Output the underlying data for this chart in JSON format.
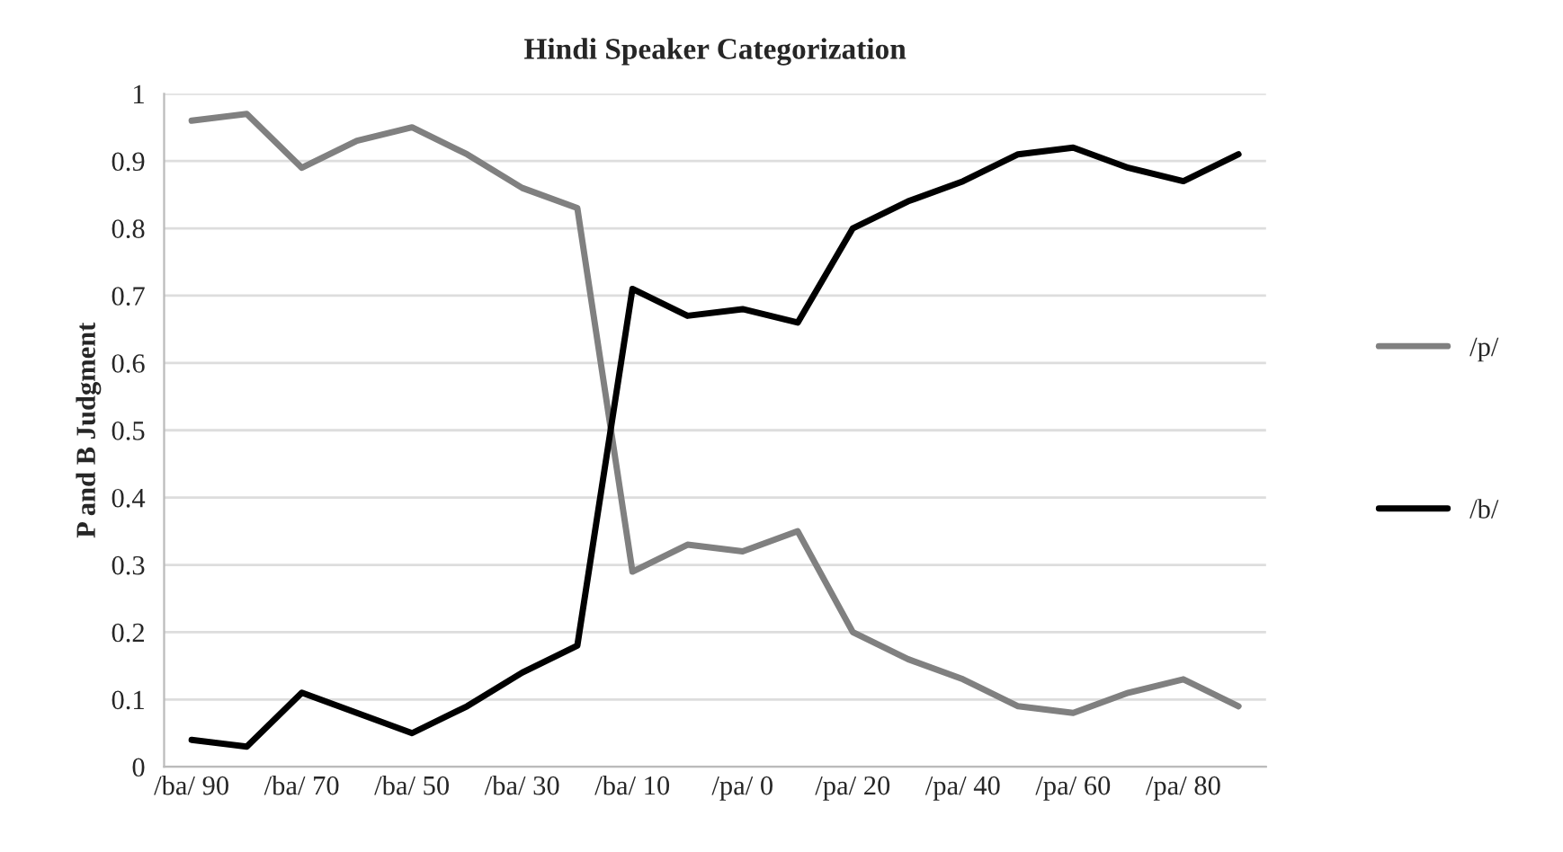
{
  "chart_data": {
    "type": "line",
    "title": "Hindi Speaker Categorization",
    "ylabel": "P and B Judgment",
    "categories": [
      "/ba/ 90",
      null,
      "/ba/ 70",
      null,
      "/ba/ 50",
      null,
      "/ba/ 30",
      null,
      "/ba/ 10",
      null,
      "/pa/ 0",
      null,
      "/pa/ 20",
      null,
      "/pa/ 40",
      null,
      "/pa/ 60",
      null,
      "/pa/ 80",
      null
    ],
    "series": [
      {
        "name": "/p/",
        "color": "#808080",
        "values": [
          0.96,
          0.97,
          0.89,
          0.93,
          0.95,
          0.91,
          0.86,
          0.83,
          0.29,
          0.33,
          0.32,
          0.35,
          0.2,
          0.16,
          0.13,
          0.09,
          0.08,
          0.11,
          0.13,
          0.09
        ]
      },
      {
        "name": "/b/",
        "color": "#000000",
        "values": [
          0.04,
          0.03,
          0.11,
          0.08,
          0.05,
          0.09,
          0.14,
          0.18,
          0.71,
          0.67,
          0.68,
          0.66,
          0.8,
          0.84,
          0.87,
          0.91,
          0.92,
          0.89,
          0.87,
          0.91
        ]
      }
    ],
    "ylim": [
      0,
      1
    ],
    "yticks": [
      0,
      0.1,
      0.2,
      0.3,
      0.4,
      0.5,
      0.6,
      0.7,
      0.8,
      0.9,
      1
    ],
    "grid": "y",
    "legend": "right",
    "marker": "none",
    "line_style": "solid"
  }
}
